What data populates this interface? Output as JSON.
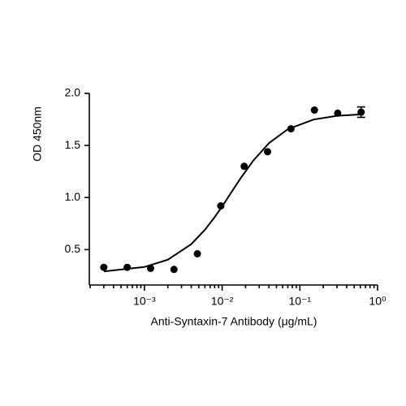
{
  "chart_data": {
    "type": "scatter",
    "x_label": "Anti-Syntaxin-7 Antibody (μg/mL)",
    "y_label": "OD 450nm",
    "x": [
      0.0003,
      0.0006,
      0.0012,
      0.0024,
      0.0048,
      0.0096,
      0.0192,
      0.0384,
      0.0768,
      0.154,
      0.307,
      0.614
    ],
    "values": [
      0.33,
      0.33,
      0.32,
      0.31,
      0.46,
      0.92,
      1.3,
      1.44,
      1.66,
      1.84,
      1.81,
      1.82
    ],
    "errors": [
      null,
      null,
      null,
      null,
      null,
      null,
      null,
      null,
      null,
      null,
      null,
      0.05
    ],
    "color": "#000000",
    "curve": {
      "x": [
        0.0003,
        0.001,
        0.002,
        0.004,
        0.006,
        0.008,
        0.01,
        0.013,
        0.017,
        0.025,
        0.04,
        0.07,
        0.15,
        0.3,
        0.65
      ],
      "values": [
        0.291,
        0.333,
        0.403,
        0.552,
        0.69,
        0.811,
        0.915,
        1.045,
        1.177,
        1.352,
        1.522,
        1.656,
        1.749,
        1.785,
        1.8
      ]
    },
    "xlog": true,
    "xlim": [
      0.0002,
      1
    ],
    "xticks": [
      {
        "value": 0.001,
        "label": "10⁻³"
      },
      {
        "value": 0.01,
        "label": "10⁻²"
      },
      {
        "value": 0.1,
        "label": "10⁻¹"
      },
      {
        "value": 1,
        "label": "10⁰"
      }
    ],
    "ylim": [
      0.16,
      2.0
    ],
    "yticks": [
      0.5,
      {
        "value": 1,
        "label": "1.0"
      },
      1.5,
      {
        "value": 2,
        "label": "2.0"
      }
    ],
    "grid": false
  }
}
